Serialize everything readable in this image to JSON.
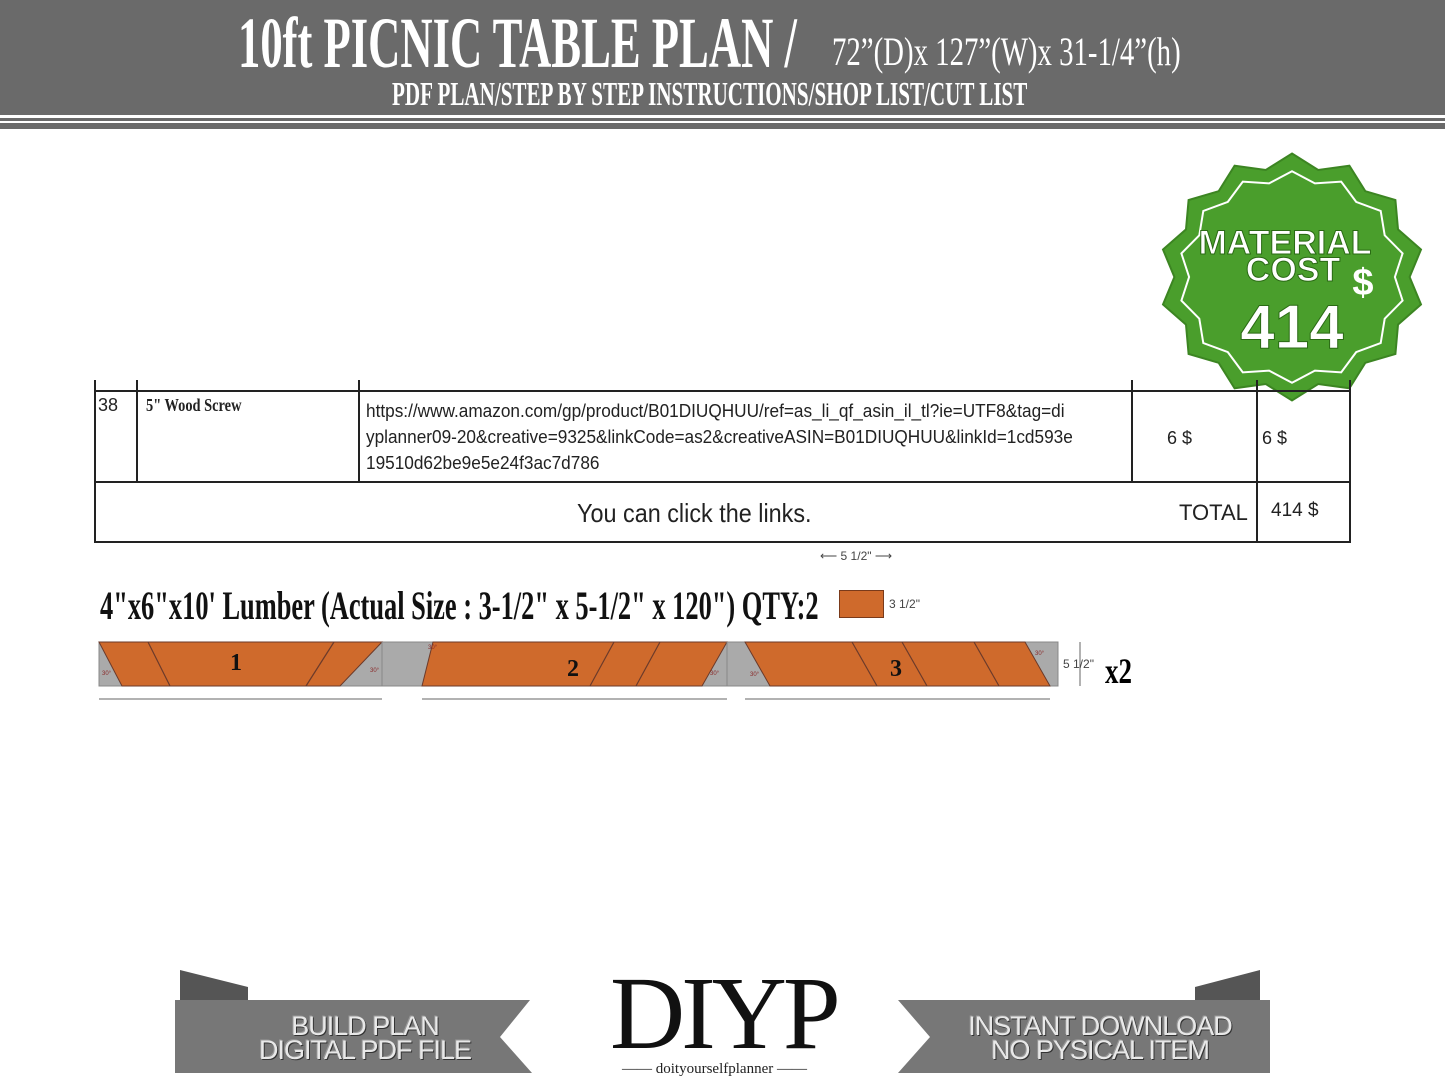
{
  "header": {
    "title": "10ft PICNIC TABLE PLAN /",
    "dimensions": "72”(D)x 127”(W)x 31-1/4”(h)",
    "subtitle": "PDF PLAN/STEP BY STEP INSTRUCTIONS/SHOP LIST/CUT LIST"
  },
  "badge": {
    "line1": "MATERIAL",
    "line2": "COST",
    "currency": "$",
    "amount": "414",
    "color": "#4a9e2c"
  },
  "table": {
    "rows": [
      {
        "no": "38",
        "item": "5\" Wood Screw",
        "link": "https://www.amazon.com/gp/product/B01DIUQHUU/ref=as_li_qf_asin_il_tl?ie=UTF8&tag=diyplanner09-20&creative=9325&linkCode=as2&creativeASIN=B01DIUQHUU&linkId=1cd593e19510d62be9e5e24f3ac7d786",
        "price": "6 $",
        "total": "6 $"
      }
    ],
    "note": "You can click the links.",
    "total_label": "TOTAL",
    "total_value": "414 $"
  },
  "lumber": {
    "title": "4\"x6\"x10' Lumber (Actual Size : 3-1/2\" x 5-1/2\" x 120\") QTY:2",
    "width_label": "5 1/2\"",
    "thickness_label": "3 1/2\"",
    "height_label": "5 1/2\"",
    "multiplier": "x2",
    "pieces": [
      "1",
      "2",
      "3"
    ],
    "angle_label": "30°",
    "wood_color": "#cf6a2c",
    "waste_color": "#aaaaaa"
  },
  "footer": {
    "left_line1": "BUILD PLAN",
    "left_line2": "DIGITAL PDF FILE",
    "logo": "DIYP",
    "logo_sub": "doityourselfplanner",
    "right_line1": "INSTANT DOWNLOAD",
    "right_line2": "NO PYSICAL ITEM"
  }
}
